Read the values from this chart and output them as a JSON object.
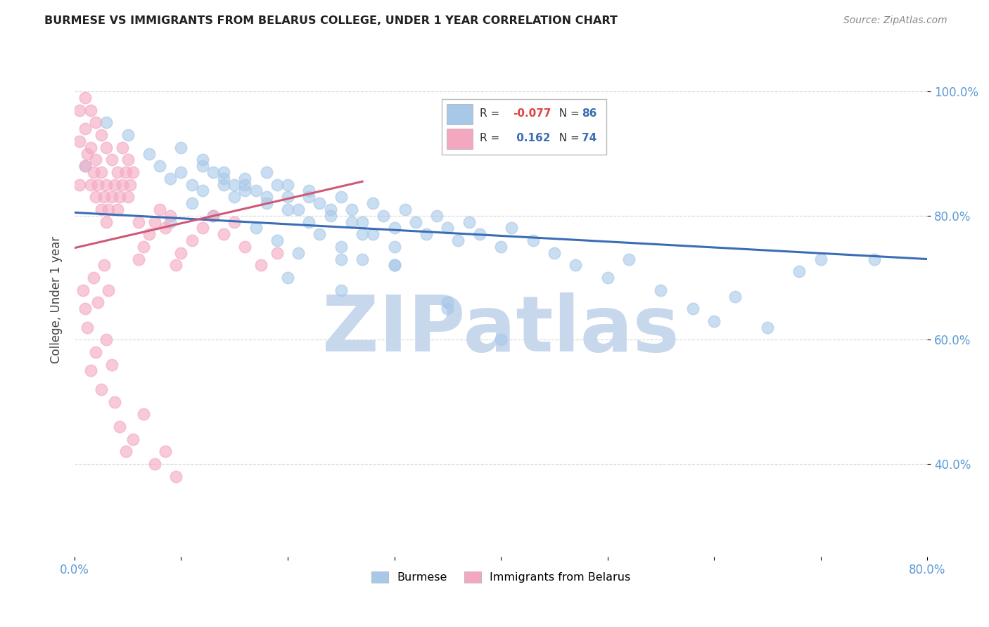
{
  "title": "BURMESE VS IMMIGRANTS FROM BELARUS COLLEGE, UNDER 1 YEAR CORRELATION CHART",
  "source": "Source: ZipAtlas.com",
  "ylabel": "College, Under 1 year",
  "xlim": [
    0.0,
    0.8
  ],
  "ylim": [
    0.25,
    1.08
  ],
  "xticks": [
    0.0,
    0.1,
    0.2,
    0.3,
    0.4,
    0.5,
    0.6,
    0.7,
    0.8
  ],
  "xticklabels": [
    "0.0%",
    "",
    "",
    "",
    "",
    "",
    "",
    "",
    "80.0%"
  ],
  "ytick_positions": [
    0.4,
    0.6,
    0.8,
    1.0
  ],
  "ytick_labels": [
    "40.0%",
    "60.0%",
    "80.0%",
    "100.0%"
  ],
  "R_blue": -0.077,
  "N_blue": 86,
  "R_pink": 0.162,
  "N_pink": 74,
  "blue_color": "#a8c8e8",
  "pink_color": "#f4a8c0",
  "blue_line_color": "#3a6db5",
  "pink_line_color": "#d05878",
  "watermark": "ZIPatlas",
  "watermark_color": "#c8d8ec",
  "legend_label_blue": "Burmese",
  "legend_label_pink": "Immigrants from Belarus",
  "blue_line_x": [
    0.0,
    0.8
  ],
  "blue_line_y": [
    0.805,
    0.73
  ],
  "pink_line_x": [
    0.0,
    0.27
  ],
  "pink_line_y": [
    0.748,
    0.855
  ],
  "blue_scatter_x": [
    0.01,
    0.03,
    0.05,
    0.07,
    0.08,
    0.09,
    0.1,
    0.11,
    0.12,
    0.13,
    0.14,
    0.15,
    0.16,
    0.17,
    0.18,
    0.19,
    0.2,
    0.21,
    0.22,
    0.23,
    0.24,
    0.25,
    0.26,
    0.27,
    0.28,
    0.29,
    0.3,
    0.31,
    0.32,
    0.33,
    0.34,
    0.35,
    0.36,
    0.37,
    0.38,
    0.4,
    0.41,
    0.43,
    0.45,
    0.47,
    0.5,
    0.52,
    0.55,
    0.58,
    0.6,
    0.62,
    0.65,
    0.68,
    0.7,
    0.75,
    0.09,
    0.11,
    0.13,
    0.15,
    0.17,
    0.19,
    0.21,
    0.23,
    0.25,
    0.27,
    0.12,
    0.14,
    0.16,
    0.18,
    0.2,
    0.22,
    0.24,
    0.26,
    0.28,
    0.3,
    0.1,
    0.12,
    0.14,
    0.16,
    0.18,
    0.2,
    0.22,
    0.3,
    0.35,
    0.4,
    0.2,
    0.25,
    0.3,
    0.35,
    0.25,
    0.27
  ],
  "blue_scatter_y": [
    0.88,
    0.95,
    0.93,
    0.9,
    0.88,
    0.86,
    0.87,
    0.85,
    0.84,
    0.87,
    0.85,
    0.83,
    0.86,
    0.84,
    0.82,
    0.85,
    0.83,
    0.81,
    0.84,
    0.82,
    0.8,
    0.83,
    0.81,
    0.79,
    0.82,
    0.8,
    0.78,
    0.81,
    0.79,
    0.77,
    0.8,
    0.78,
    0.76,
    0.79,
    0.77,
    0.75,
    0.78,
    0.76,
    0.74,
    0.72,
    0.7,
    0.73,
    0.68,
    0.65,
    0.63,
    0.67,
    0.62,
    0.71,
    0.73,
    0.73,
    0.79,
    0.82,
    0.8,
    0.85,
    0.78,
    0.76,
    0.74,
    0.77,
    0.75,
    0.73,
    0.88,
    0.86,
    0.84,
    0.87,
    0.85,
    0.83,
    0.81,
    0.79,
    0.77,
    0.75,
    0.91,
    0.89,
    0.87,
    0.85,
    0.83,
    0.81,
    0.79,
    0.72,
    0.65,
    0.6,
    0.7,
    0.68,
    0.72,
    0.66,
    0.73,
    0.77
  ],
  "pink_scatter_x": [
    0.005,
    0.005,
    0.005,
    0.01,
    0.01,
    0.01,
    0.012,
    0.015,
    0.015,
    0.015,
    0.018,
    0.02,
    0.02,
    0.02,
    0.022,
    0.025,
    0.025,
    0.025,
    0.028,
    0.03,
    0.03,
    0.03,
    0.032,
    0.035,
    0.035,
    0.038,
    0.04,
    0.04,
    0.042,
    0.045,
    0.045,
    0.048,
    0.05,
    0.05,
    0.052,
    0.055,
    0.06,
    0.06,
    0.065,
    0.07,
    0.075,
    0.08,
    0.085,
    0.09,
    0.095,
    0.1,
    0.11,
    0.12,
    0.13,
    0.14,
    0.15,
    0.16,
    0.175,
    0.19,
    0.01,
    0.015,
    0.02,
    0.025,
    0.03,
    0.035,
    0.008,
    0.012,
    0.018,
    0.022,
    0.028,
    0.032,
    0.038,
    0.042,
    0.048,
    0.055,
    0.065,
    0.075,
    0.085,
    0.095
  ],
  "pink_scatter_y": [
    0.97,
    0.92,
    0.85,
    0.99,
    0.94,
    0.88,
    0.9,
    0.97,
    0.91,
    0.85,
    0.87,
    0.95,
    0.89,
    0.83,
    0.85,
    0.93,
    0.87,
    0.81,
    0.83,
    0.91,
    0.85,
    0.79,
    0.81,
    0.89,
    0.83,
    0.85,
    0.87,
    0.81,
    0.83,
    0.91,
    0.85,
    0.87,
    0.89,
    0.83,
    0.85,
    0.87,
    0.79,
    0.73,
    0.75,
    0.77,
    0.79,
    0.81,
    0.78,
    0.8,
    0.72,
    0.74,
    0.76,
    0.78,
    0.8,
    0.77,
    0.79,
    0.75,
    0.72,
    0.74,
    0.65,
    0.55,
    0.58,
    0.52,
    0.6,
    0.56,
    0.68,
    0.62,
    0.7,
    0.66,
    0.72,
    0.68,
    0.5,
    0.46,
    0.42,
    0.44,
    0.48,
    0.4,
    0.42,
    0.38
  ]
}
